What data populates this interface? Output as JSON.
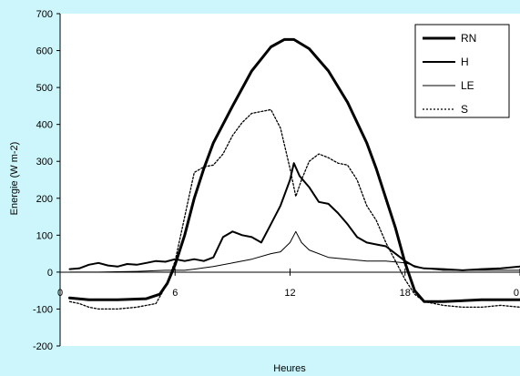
{
  "chart_data": {
    "type": "line",
    "xlabel": "Heures",
    "ylabel": "Energie (W m-2)",
    "xlim": [
      0,
      24
    ],
    "ylim": [
      -200,
      700
    ],
    "xticks": [
      "0",
      "6",
      "12",
      "18",
      "0"
    ],
    "yticks": [
      "700",
      "600",
      "500",
      "400",
      "300",
      "200",
      "100",
      "0",
      "-100",
      "-200"
    ],
    "legend_position": "top-right",
    "series": [
      {
        "name": "RN",
        "style": "thick",
        "color": "#000000",
        "x": [
          0.5,
          1.5,
          3,
          4.5,
          5.2,
          5.6,
          6,
          6.5,
          7,
          7.5,
          8,
          9,
          10,
          11,
          11.7,
          12.2,
          13,
          14,
          15,
          16,
          16.5,
          17,
          17.5,
          18,
          18.5,
          19,
          20,
          22,
          24
        ],
        "y": [
          -70,
          -75,
          -75,
          -72,
          -60,
          -30,
          20,
          100,
          200,
          280,
          350,
          450,
          545,
          610,
          630,
          630,
          605,
          545,
          460,
          350,
          280,
          200,
          120,
          25,
          -50,
          -80,
          -80,
          -75,
          -75
        ]
      },
      {
        "name": "H",
        "style": "medium",
        "color": "#000000",
        "x": [
          0.5,
          1,
          1.5,
          2,
          2.5,
          3,
          3.5,
          4,
          4.5,
          5,
          5.5,
          6,
          6.5,
          7,
          7.5,
          8,
          8.5,
          9,
          9.5,
          10,
          10.5,
          11,
          11.5,
          12,
          12.2,
          12.5,
          13,
          13.5,
          14,
          14.5,
          15,
          15.5,
          16,
          16.5,
          17,
          17.5,
          18,
          18.5,
          19,
          20,
          21,
          22,
          23,
          24
        ],
        "y": [
          8,
          10,
          20,
          25,
          18,
          15,
          22,
          20,
          25,
          30,
          28,
          35,
          30,
          35,
          30,
          40,
          95,
          110,
          100,
          95,
          80,
          130,
          180,
          250,
          295,
          260,
          230,
          190,
          185,
          160,
          130,
          95,
          80,
          75,
          70,
          50,
          30,
          15,
          10,
          8,
          5,
          8,
          10,
          15
        ]
      },
      {
        "name": "LE",
        "style": "thin",
        "color": "#000000",
        "x": [
          0.5,
          2,
          4,
          5.5,
          6.5,
          7,
          8,
          9,
          10,
          11,
          11.5,
          12,
          12.3,
          12.6,
          13,
          14,
          15,
          16,
          17,
          18,
          19,
          20,
          22,
          24
        ],
        "y": [
          0,
          0,
          2,
          5,
          5,
          8,
          15,
          25,
          35,
          50,
          55,
          80,
          110,
          80,
          60,
          40,
          35,
          30,
          30,
          25,
          10,
          5,
          5,
          5
        ]
      },
      {
        "name": "S",
        "style": "dotted",
        "color": "#000000",
        "x": [
          0.5,
          1,
          1.5,
          2,
          3,
          4,
          4.5,
          5,
          5.5,
          6,
          6.5,
          7,
          7.5,
          8,
          8.5,
          9,
          9.5,
          10,
          10.5,
          11,
          11.5,
          12,
          12.3,
          12.6,
          13,
          13.5,
          14,
          14.5,
          15,
          15.5,
          16,
          16.5,
          17,
          17.5,
          18,
          18.5,
          19,
          20,
          21,
          22,
          23,
          24
        ],
        "y": [
          -80,
          -85,
          -95,
          -100,
          -100,
          -95,
          -90,
          -85,
          -40,
          30,
          150,
          270,
          285,
          290,
          320,
          370,
          405,
          430,
          435,
          440,
          390,
          280,
          205,
          250,
          300,
          320,
          310,
          295,
          290,
          250,
          180,
          140,
          80,
          30,
          -20,
          -60,
          -80,
          -90,
          -95,
          -95,
          -90,
          -95
        ]
      }
    ]
  }
}
